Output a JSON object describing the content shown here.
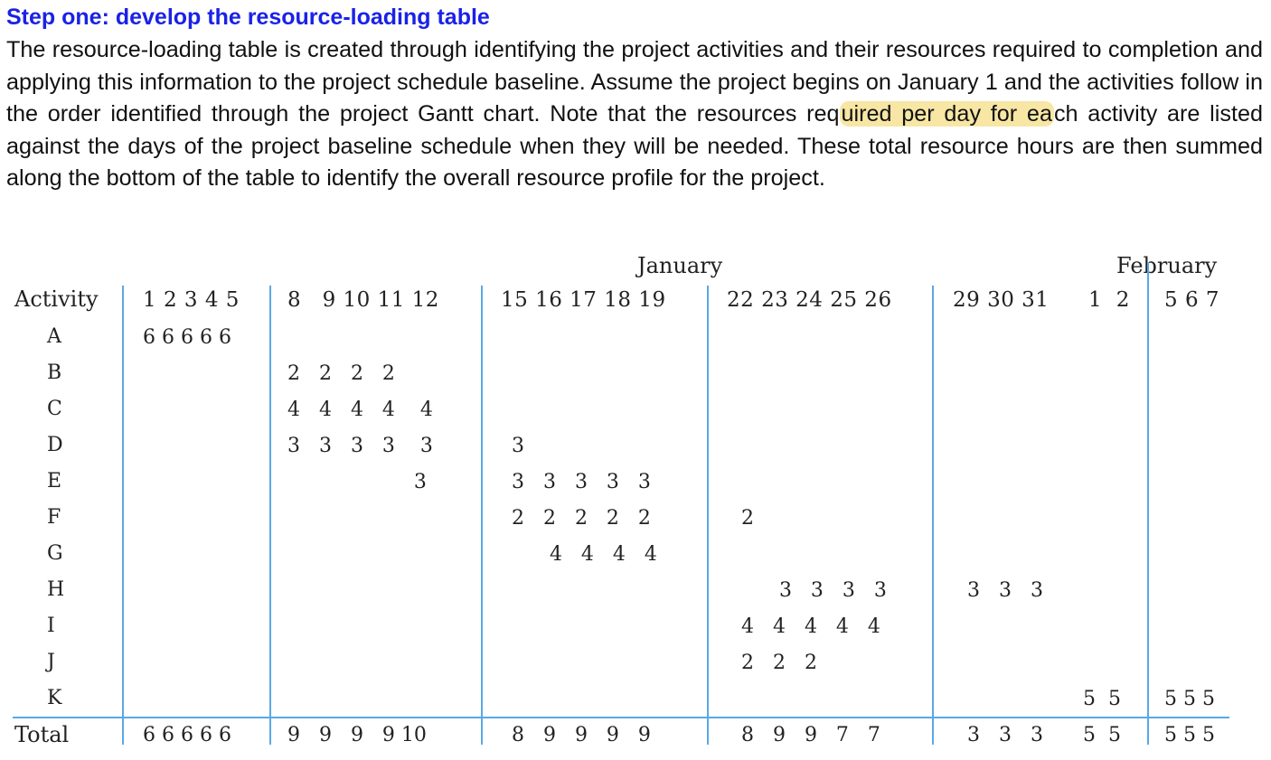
{
  "heading": "Step one: develop the resource-loading table",
  "paragraph": {
    "before": "The resource-loading table is created through identifying the project activities and their resources required to completion and applying this information to the project schedule baseline. Assume the project begins on January 1 and the activities follow in the order identified through the project Gantt chart. Note that the resources req",
    "highlight": "uired per day for ea",
    "after": "ch activity are listed against the days of the project baseline schedule when they will be needed. These total resource hours are then summed along the bottom of the table to identify the overall resource profile for the project."
  },
  "table": {
    "months": [
      "January",
      "February"
    ],
    "activity_header": "Activity",
    "total_label": "Total",
    "week_headers": [
      "1 2 3 4 5",
      "8   9 10 11 12",
      "15 16 17 18 19",
      "22 23 24 25 26",
      "29 30 31",
      "1  2",
      "5 6 7"
    ],
    "rows": [
      {
        "label": "A",
        "cells": [
          "6 6 6 6 6",
          "",
          "",
          "",
          "",
          "",
          ""
        ]
      },
      {
        "label": "B",
        "cells": [
          "",
          "2   2   2   2",
          "",
          "",
          "",
          "",
          ""
        ]
      },
      {
        "label": "C",
        "cells": [
          "",
          "4   4   4   4    4",
          "",
          "",
          "",
          "",
          ""
        ]
      },
      {
        "label": "D",
        "cells": [
          "",
          "3   3   3   3    3",
          "3",
          "",
          "",
          "",
          ""
        ]
      },
      {
        "label": "E",
        "cells": [
          "",
          "                    3",
          "3   3   3   3   3",
          "",
          "",
          "",
          ""
        ]
      },
      {
        "label": "F",
        "cells": [
          "",
          "",
          "2   2   2   2   2",
          "2",
          "",
          "",
          ""
        ]
      },
      {
        "label": "G",
        "cells": [
          "",
          "",
          "      4   4   4   4",
          "",
          "",
          "",
          ""
        ]
      },
      {
        "label": "H",
        "cells": [
          "",
          "",
          "",
          "      3   3   3   3",
          "3   3   3",
          "",
          ""
        ]
      },
      {
        "label": "I",
        "cells": [
          "",
          "",
          "",
          "4   4   4   4   4",
          "",
          "",
          ""
        ]
      },
      {
        "label": "J",
        "cells": [
          "",
          "",
          "",
          "2   2   2",
          "",
          "",
          ""
        ]
      },
      {
        "label": "K",
        "cells": [
          "",
          "",
          "",
          "",
          "",
          "5  5",
          "5 5 5"
        ]
      }
    ],
    "totals": [
      "6 6 6 6 6",
      "9   9   9   9 10",
      "8   9   9   9   9",
      "8   9   9   7   7",
      "3   3   3",
      "5  5",
      "5 5 5"
    ]
  }
}
